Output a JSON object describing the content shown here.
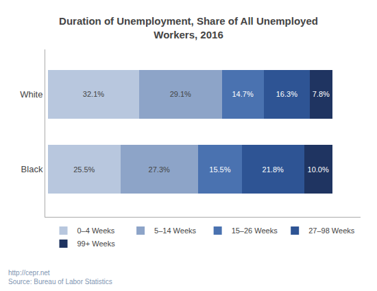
{
  "chart_data": {
    "type": "bar",
    "orientation": "horizontal",
    "stacked": true,
    "title": "Duration of Unemployment, Share of All Unemployed\nWorkers, 2016",
    "categories": [
      "White",
      "Black"
    ],
    "series": [
      {
        "name": "0–4 Weeks",
        "color": "#b8c7de",
        "values": [
          32.1,
          25.5
        ],
        "value_labels": [
          "32.1%",
          "25.5%"
        ]
      },
      {
        "name": "5–14 Weeks",
        "color": "#8da4c8",
        "values": [
          29.1,
          27.3
        ],
        "value_labels": [
          "29.1%",
          "27.3%"
        ]
      },
      {
        "name": "15–26 Weeks",
        "color": "#4a72b0",
        "values": [
          14.7,
          15.5
        ],
        "value_labels": [
          "14.7%",
          "15.5%"
        ]
      },
      {
        "name": "27–98 Weeks",
        "color": "#2e5494",
        "values": [
          16.3,
          21.8
        ],
        "value_labels": [
          "16.3%",
          "21.8%"
        ]
      },
      {
        "name": "99+ Weeks",
        "color": "#1f3461",
        "values": [
          7.8,
          10.0
        ],
        "value_labels": [
          "7.8%",
          "10.0%"
        ]
      }
    ],
    "xlim": [
      0,
      110
    ],
    "xticks": [],
    "tick_labels": "y",
    "grid": false,
    "legend": "bottom",
    "data_labels": true,
    "annotations": [
      "http://cepr.net\nSource: Bureau of Labor Statistics"
    ]
  }
}
